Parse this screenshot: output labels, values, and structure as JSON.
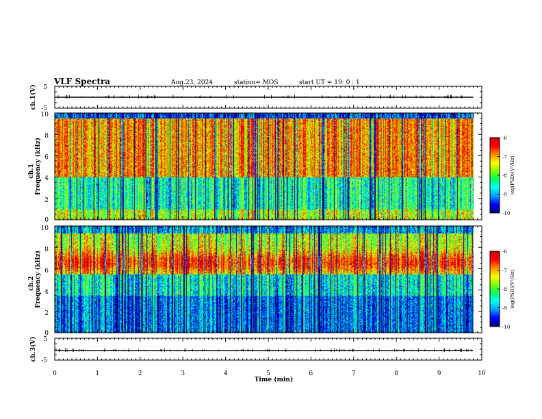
{
  "header": {
    "title": "VLF Spectra",
    "date": "Aug.23, 2024",
    "station": "station= MOS",
    "start": "start  UT =   19: 0  : 1"
  },
  "chart_data": [
    {
      "type": "line",
      "panel": "ch1-waveform",
      "ylabel": "ch.1(V)",
      "ylim": [
        -5,
        5
      ],
      "yticks": [
        "5",
        "-5"
      ],
      "x_range_min": [
        0,
        9.8
      ],
      "level": 0
    },
    {
      "type": "heatmap",
      "panel": "ch1-spectrogram",
      "ylabel": "ch.1\nFrequency (kHz)",
      "ylim": [
        0,
        10
      ],
      "yticks": [
        "0",
        "2",
        "4",
        "6",
        "8",
        "10"
      ],
      "x_range_min": [
        0,
        9.8
      ],
      "colorbar": {
        "label": "log(PSD)(V²/Hz)",
        "range": [
          -10,
          -6
        ],
        "ticks": [
          "-6",
          "-7",
          "-8",
          "-9",
          "-10"
        ]
      }
    },
    {
      "type": "heatmap",
      "panel": "ch2-spectrogram",
      "ylabel": "ch.2\nFrequency (kHz)",
      "ylim": [
        0,
        10
      ],
      "yticks": [
        "0",
        "2",
        "4",
        "6",
        "8",
        "10"
      ],
      "x_range_min": [
        0,
        9.8
      ],
      "colorbar": {
        "label": "log(PSD)(V²/Hz)",
        "range": [
          -10,
          -6
        ],
        "ticks": [
          "-6",
          "-7",
          "-8",
          "-9",
          "-10"
        ]
      }
    },
    {
      "type": "line",
      "panel": "ch3-waveform",
      "ylabel": "ch.3(V)",
      "ylim": [
        -5,
        5
      ],
      "yticks": [
        "5",
        "-5"
      ],
      "x_range_min": [
        0,
        9.8
      ],
      "level": 0
    }
  ],
  "xaxis": {
    "label": "Time  (min)",
    "range": [
      0,
      10
    ],
    "ticks": [
      "0",
      "1",
      "2",
      "3",
      "4",
      "5",
      "6",
      "7",
      "8",
      "9",
      "10"
    ]
  },
  "colors": {
    "colormap": [
      "#000080",
      "#0000ff",
      "#00a0ff",
      "#00ffff",
      "#00ff60",
      "#80ff00",
      "#ffff00",
      "#ff9000",
      "#ff0000",
      "#d00000"
    ],
    "trace": "#000000"
  }
}
